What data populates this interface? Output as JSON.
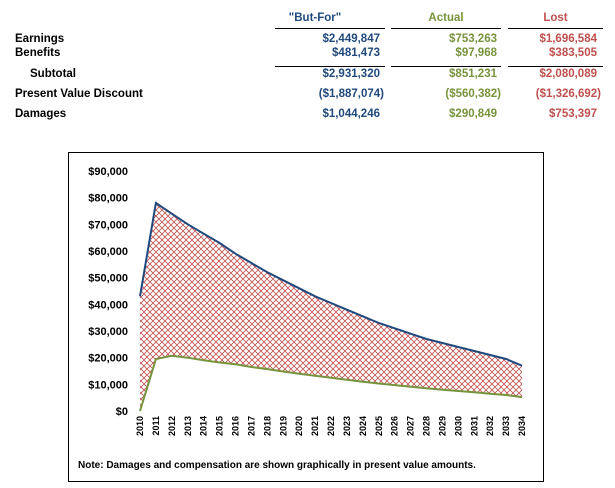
{
  "table": {
    "headers": {
      "but_for": "\"But-For\"",
      "actual": "Actual",
      "lost": "Lost"
    },
    "rows": [
      {
        "label": "Earnings",
        "but_for": "$2,449,847",
        "actual": "$753,263",
        "lost": "$1,696,584"
      },
      {
        "label": "Benefits",
        "but_for": "$481,473",
        "actual": "$97,968",
        "lost": "$383,505"
      },
      {
        "label": "Subtotal",
        "but_for": "$2,931,320",
        "actual": "$851,231",
        "lost": "$2,080,089"
      },
      {
        "label": "Present Value Discount",
        "but_for": "($1,887,074)",
        "actual": "($560,382)",
        "lost": "($1,326,692)"
      },
      {
        "label": "Damages",
        "but_for": "$1,044,246",
        "actual": "$290,849",
        "lost": "$753,397"
      }
    ]
  },
  "colors": {
    "but_for": "#1f497d",
    "actual": "#77933c",
    "lost": "#c0504d"
  },
  "chart_data": {
    "type": "area",
    "title": "",
    "xlabel": "",
    "ylabel": "",
    "ylim": [
      0,
      90000
    ],
    "yticks": [
      "$0",
      "$10,000",
      "$20,000",
      "$30,000",
      "$40,000",
      "$50,000",
      "$60,000",
      "$70,000",
      "$80,000",
      "$90,000"
    ],
    "x": [
      "2010",
      "2011",
      "2012",
      "2013",
      "2014",
      "2015",
      "2016",
      "2017",
      "2018",
      "2019",
      "2020",
      "2021",
      "2022",
      "2023",
      "2024",
      "2025",
      "2026",
      "2027",
      "2028",
      "2029",
      "2030",
      "2031",
      "2032",
      "2033",
      "2034"
    ],
    "series": [
      {
        "name": "But-For",
        "values": [
          43000,
          78000,
          74000,
          70000,
          66500,
          63000,
          59000,
          55500,
          52000,
          49000,
          46000,
          43000,
          40500,
          38000,
          35500,
          33000,
          31000,
          29000,
          27000,
          25500,
          24000,
          22500,
          21000,
          19500,
          17000
        ]
      },
      {
        "name": "Actual",
        "values": [
          0,
          19500,
          20700,
          20000,
          19000,
          18200,
          17500,
          16500,
          15700,
          14800,
          14000,
          13200,
          12500,
          11700,
          11000,
          10300,
          9700,
          9100,
          8500,
          8000,
          7500,
          7000,
          6500,
          6000,
          5200
        ]
      }
    ],
    "fill_between": "lost",
    "note": "Note: Damages and compensation are shown graphically in present value  amounts."
  }
}
